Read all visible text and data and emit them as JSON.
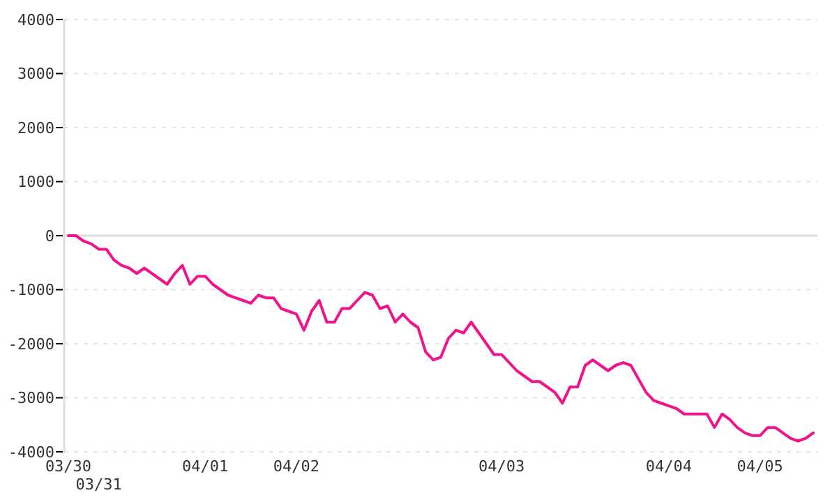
{
  "chart_data": {
    "type": "line",
    "categories": [
      "03/30",
      null,
      null,
      null,
      "03/31",
      null,
      null,
      null,
      null,
      null,
      null,
      null,
      null,
      null,
      null,
      null,
      null,
      null,
      "04/01",
      null,
      null,
      null,
      null,
      null,
      null,
      null,
      null,
      null,
      null,
      null,
      "04/02",
      null,
      null,
      null,
      null,
      null,
      null,
      null,
      null,
      null,
      null,
      null,
      null,
      null,
      null,
      null,
      null,
      null,
      null,
      null,
      null,
      null,
      null,
      null,
      null,
      null,
      null,
      "04/03",
      null,
      null,
      null,
      null,
      null,
      null,
      null,
      null,
      null,
      null,
      null,
      null,
      null,
      null,
      null,
      null,
      null,
      null,
      null,
      null,
      null,
      "04/04",
      null,
      null,
      null,
      null,
      null,
      null,
      null,
      null,
      null,
      null,
      null,
      "04/05",
      null,
      null,
      null,
      null,
      null,
      null,
      null
    ],
    "series": [
      {
        "color": "#f0148c",
        "values": [
          0,
          0,
          -100,
          -150,
          -250,
          -250,
          -450,
          -550,
          -600,
          -700,
          -600,
          -700,
          -800,
          -900,
          -700,
          -550,
          -900,
          -750,
          -750,
          -900,
          -1000,
          -1100,
          -1150,
          -1200,
          -1250,
          -1100,
          -1150,
          -1150,
          -1350,
          -1400,
          -1450,
          -1750,
          -1400,
          -1200,
          -1600,
          -1600,
          -1350,
          -1350,
          -1200,
          -1050,
          -1100,
          -1350,
          -1300,
          -1600,
          -1450,
          -1600,
          -1700,
          -2150,
          -2300,
          -2250,
          -1900,
          -1750,
          -1800,
          -1600,
          -1800,
          -2000,
          -2200,
          -2200,
          -2350,
          -2500,
          -2600,
          -2700,
          -2700,
          -2800,
          -2900,
          -3100,
          -2800,
          -2800,
          -2400,
          -2300,
          -2400,
          -2500,
          -2400,
          -2350,
          -2400,
          -2650,
          -2900,
          -3050,
          -3100,
          -3150,
          -3200,
          -3300,
          -3300,
          -3300,
          -3300,
          -3550,
          -3300,
          -3400,
          -3550,
          -3650,
          -3700,
          -3700,
          -3550,
          -3550,
          -3650,
          -3750,
          -3800,
          -3750,
          -3650
        ]
      }
    ],
    "ylim": [
      -4000,
      4000
    ],
    "yticks": [
      -4000,
      -3000,
      -2000,
      -1000,
      0,
      1000,
      2000,
      3000,
      4000
    ],
    "grid": "y",
    "ref_lines": [
      {
        "axis": "y",
        "value": 0,
        "color": "#dddddd"
      }
    ],
    "marker": "none",
    "line_style": "solid"
  }
}
